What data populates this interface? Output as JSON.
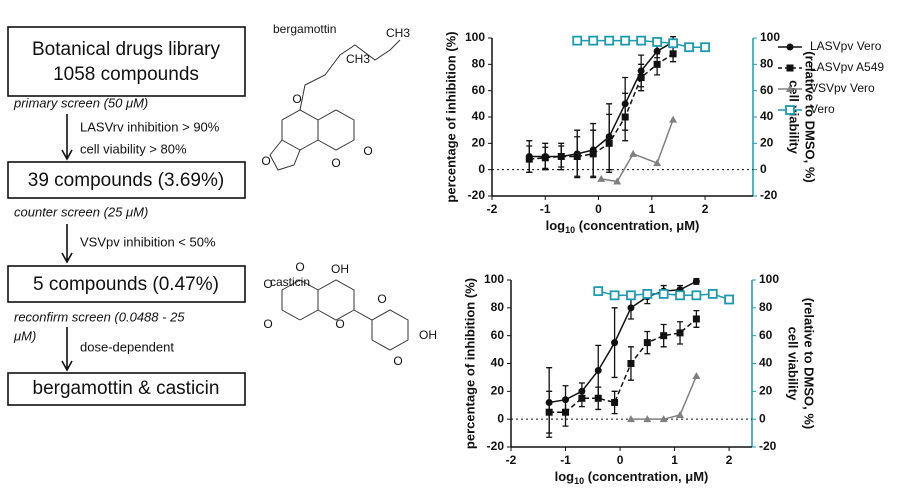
{
  "flowchart": {
    "box1": [
      "Botanical drugs library",
      "1058 compounds"
    ],
    "step1": "primary screen (50 μM)",
    "filter1": [
      "LASVrv inhibition > 90%",
      "cell viability > 80%"
    ],
    "box2": "39 compounds (3.69%)",
    "step2": "counter screen (25 μM)",
    "filter2": "VSVpv inhibition < 50%",
    "box3": "5 compounds (0.47%)",
    "step3": [
      "reconfirm screen (0.0488 - 25",
      "μM)"
    ],
    "filter3": "dose-dependent",
    "box4": "bergamottin & casticin"
  },
  "molecules": [
    {
      "name": "bergamottin",
      "atoms": [
        "CH3",
        "CH3",
        "O",
        "O",
        "O",
        "O"
      ]
    },
    {
      "name": "casticin",
      "atoms": [
        "OH",
        "OH",
        "O",
        "O",
        "O",
        "O",
        "O",
        "O"
      ]
    }
  ],
  "chart_data": [
    {
      "type": "line",
      "ylabel": "percentage of inhibition (%)",
      "y2label": [
        "cell viability",
        "(relative to DMSO, %)"
      ],
      "xlabel": {
        "base": "log",
        "sub": "10",
        "rest": " (concentration, μM)"
      },
      "xlim": [
        -2,
        2.9
      ],
      "xticks": [
        -2,
        -1,
        0,
        1,
        2
      ],
      "ylim": [
        -20,
        100
      ],
      "yticks": [
        -20,
        0,
        20,
        40,
        60,
        80,
        100
      ],
      "y2lim": [
        -20,
        100
      ],
      "y2ticks": [
        -20,
        0,
        20,
        40,
        60,
        80,
        100
      ],
      "reference_line": 0,
      "legend": "right",
      "series": [
        {
          "name": "LASVpv Vero",
          "color": "#111111",
          "marker": "circle",
          "line_style": "solid",
          "x": [
            -1.3,
            -1.0,
            -0.7,
            -0.4,
            -0.1,
            0.2,
            0.5,
            0.8,
            1.1,
            1.4
          ],
          "values": [
            10,
            10,
            10,
            12,
            15,
            25,
            50,
            75,
            90,
            97
          ],
          "errors": [
            12,
            10,
            8,
            18,
            20,
            25,
            20,
            12,
            5,
            4
          ]
        },
        {
          "name": "LASVpv A549",
          "color": "#111111",
          "marker": "square",
          "line_style": "dashed",
          "x": [
            -1.3,
            -1.0,
            -0.7,
            -0.4,
            -0.1,
            0.2,
            0.5,
            0.8,
            1.1,
            1.4
          ],
          "values": [
            8,
            9,
            10,
            10,
            12,
            20,
            40,
            70,
            80,
            88
          ],
          "errors": [
            10,
            8,
            10,
            15,
            18,
            22,
            18,
            10,
            8,
            6
          ]
        },
        {
          "name": "VSVpv Vero",
          "color": "#808080",
          "marker": "triangle",
          "line_style": "solid",
          "x": [
            0.05,
            0.35,
            0.65,
            1.1,
            1.4
          ],
          "values": [
            -7,
            -9,
            12,
            5,
            38
          ]
        },
        {
          "name": "Vero",
          "color": "#1a9bb0",
          "marker": "open-square",
          "line_style": "solid",
          "axis": "y2",
          "x": [
            -0.4,
            -0.1,
            0.2,
            0.5,
            0.8,
            1.1,
            1.4,
            1.7,
            2.0
          ],
          "values": [
            98,
            98,
            98,
            98,
            98,
            97,
            96,
            93,
            93
          ]
        }
      ]
    },
    {
      "type": "line",
      "ylabel": "percentage of inhibition (%)",
      "y2label": [
        "cell viability",
        "(relative to DMSO, %)"
      ],
      "xlabel": {
        "base": "log",
        "sub": "10",
        "rest": " (concentration, μM)"
      },
      "xlim": [
        -2,
        2.42
      ],
      "xticks": [
        -2,
        -1,
        0,
        1,
        2
      ],
      "ylim": [
        -20,
        100
      ],
      "yticks": [
        -20,
        0,
        20,
        40,
        60,
        80,
        100
      ],
      "y2lim": [
        -20,
        100
      ],
      "y2ticks": [
        -20,
        0,
        20,
        40,
        60,
        80,
        100
      ],
      "reference_line": 0,
      "series": [
        {
          "name": "LASVpv Vero",
          "color": "#111111",
          "marker": "circle",
          "line_style": "solid",
          "x": [
            -1.3,
            -1.0,
            -0.7,
            -0.4,
            -0.1,
            0.2,
            0.5,
            0.8,
            1.1,
            1.4
          ],
          "values": [
            12,
            14,
            20,
            35,
            55,
            80,
            88,
            92,
            93,
            99
          ],
          "errors": [
            25,
            10,
            6,
            18,
            25,
            8,
            5,
            4,
            3,
            2
          ]
        },
        {
          "name": "LASVpv A549",
          "color": "#111111",
          "marker": "square",
          "line_style": "dashed",
          "x": [
            -1.3,
            -1.0,
            -0.7,
            -0.4,
            -0.1,
            0.2,
            0.5,
            0.8,
            1.1,
            1.4
          ],
          "values": [
            5,
            5,
            15,
            15,
            12,
            40,
            55,
            60,
            62,
            72
          ],
          "errors": [
            15,
            10,
            6,
            8,
            8,
            12,
            8,
            8,
            8,
            6
          ]
        },
        {
          "name": "VSVpv Vero",
          "color": "#808080",
          "marker": "triangle",
          "line_style": "solid",
          "x": [
            0.2,
            0.5,
            0.8,
            1.1,
            1.4
          ],
          "values": [
            0,
            0,
            0,
            3,
            31
          ]
        },
        {
          "name": "Vero",
          "color": "#1a9bb0",
          "marker": "open-square",
          "line_style": "solid",
          "axis": "y2",
          "x": [
            -0.4,
            -0.1,
            0.2,
            0.5,
            0.8,
            1.1,
            1.4,
            1.7,
            2.0
          ],
          "values": [
            92,
            89,
            89,
            90,
            90,
            89,
            89,
            90,
            86
          ]
        }
      ]
    }
  ]
}
